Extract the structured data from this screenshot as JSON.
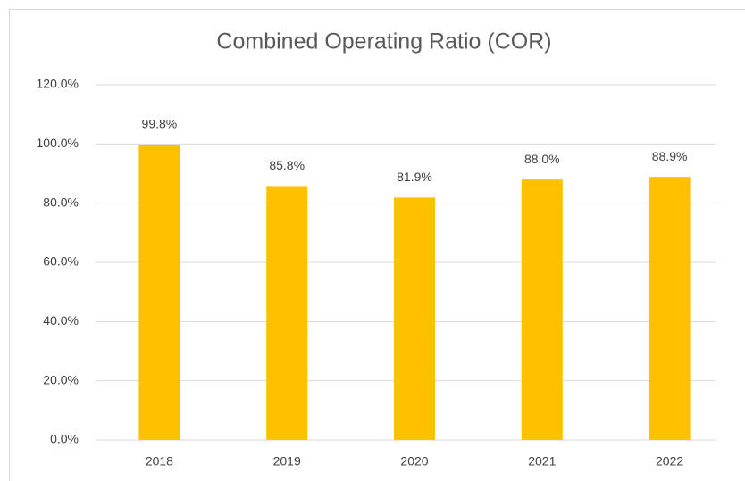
{
  "chart_data": {
    "type": "bar",
    "title": "Combined Operating Ratio (COR)",
    "categories": [
      "2018",
      "2019",
      "2020",
      "2021",
      "2022"
    ],
    "values": [
      99.8,
      85.8,
      81.9,
      88.0,
      88.9
    ],
    "value_labels": [
      "99.8%",
      "85.8%",
      "81.9%",
      "88.0%",
      "88.9%"
    ],
    "color": "#ffc000",
    "ylim": [
      0,
      120
    ],
    "yticks": [
      {
        "value": 0,
        "label": "0.0%"
      },
      {
        "value": 20,
        "label": "20.0%"
      },
      {
        "value": 40,
        "label": "40.0%"
      },
      {
        "value": 60,
        "label": "60.0%"
      },
      {
        "value": 80,
        "label": "80.0%"
      },
      {
        "value": 100,
        "label": "100.0%"
      },
      {
        "value": 120,
        "label": "120.0%"
      }
    ],
    "grid": true
  }
}
